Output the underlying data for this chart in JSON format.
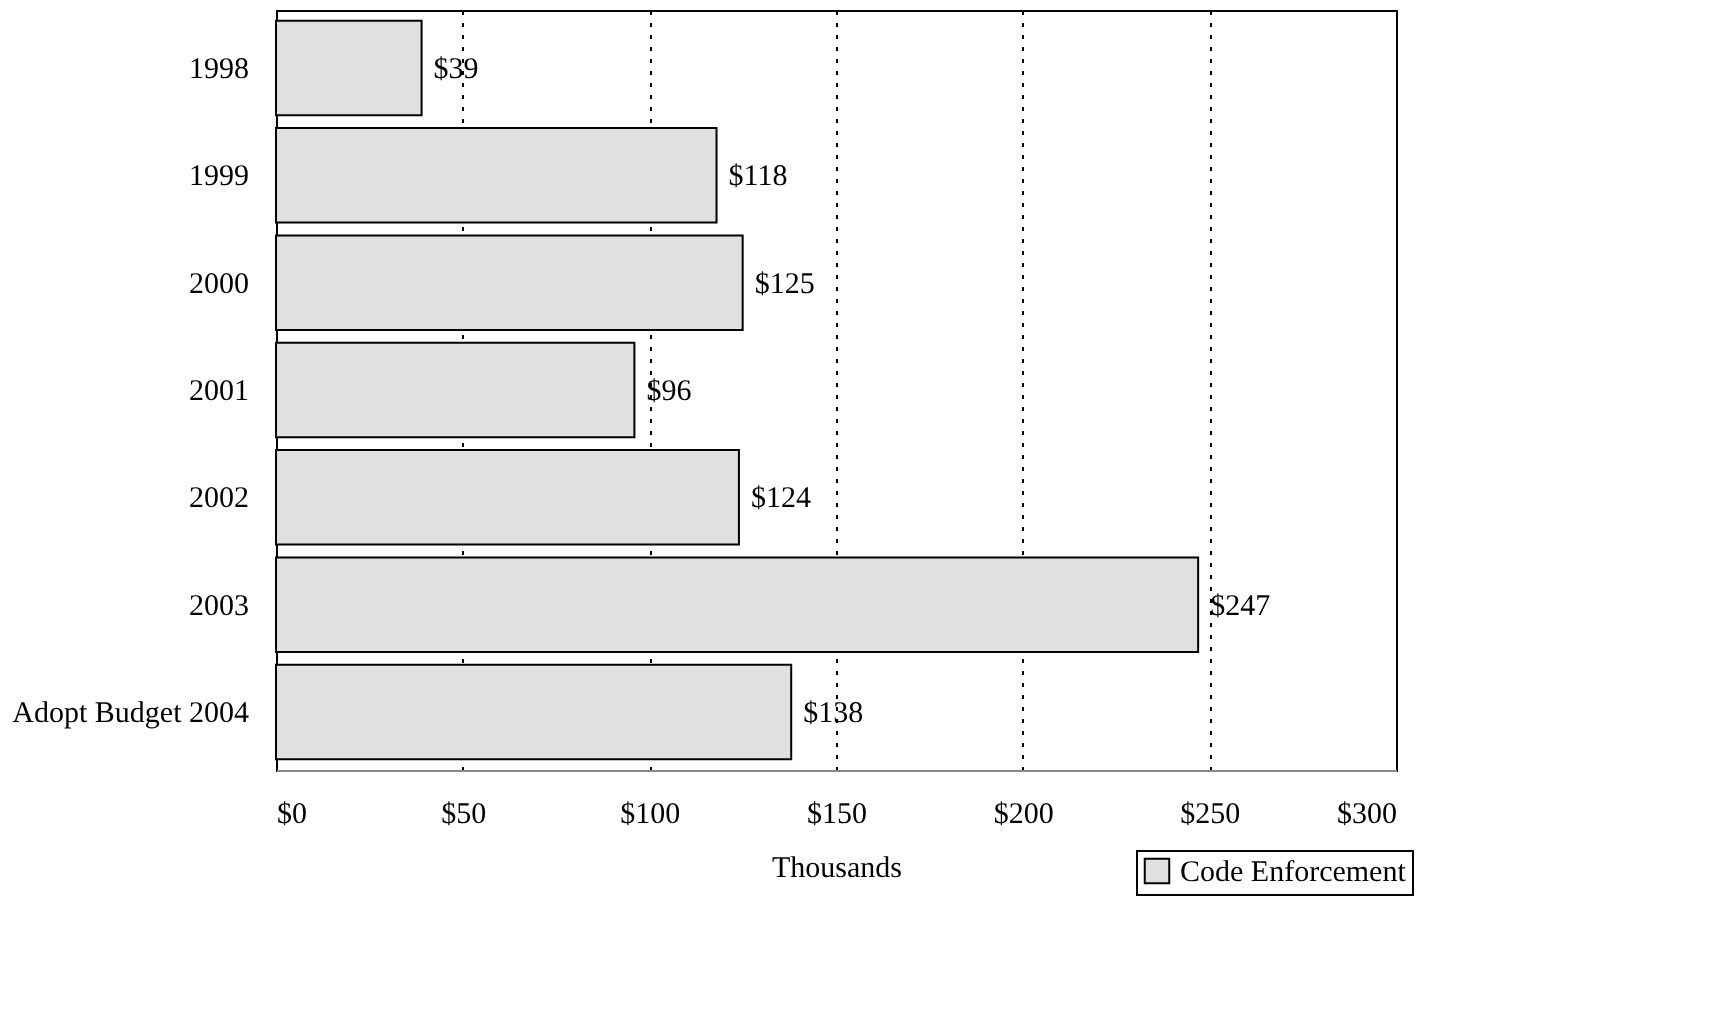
{
  "chart_data": {
    "type": "bar",
    "orientation": "horizontal",
    "categories": [
      "1998",
      "1999",
      "2000",
      "2001",
      "2002",
      "2003",
      "Adopt Budget 2004"
    ],
    "series": [
      {
        "name": "Code Enforcement",
        "color": "#e0e0e0",
        "values": [
          39,
          118,
          125,
          96,
          124,
          247,
          138
        ],
        "value_labels": [
          "$39",
          "$118",
          "$125",
          "$96",
          "$124",
          "$247",
          "$138"
        ]
      }
    ],
    "xlim": [
      0,
      300
    ],
    "xticks": [
      {
        "value": 0,
        "label": "$0"
      },
      {
        "value": 50,
        "label": "$50"
      },
      {
        "value": 100,
        "label": "$100"
      },
      {
        "value": 150,
        "label": "$150"
      },
      {
        "value": 200,
        "label": "$200"
      },
      {
        "value": 250,
        "label": "$250"
      },
      {
        "value": 300,
        "label": "$300"
      }
    ],
    "xlabel": "Thousands",
    "grid": "x",
    "legend": "bottom right"
  }
}
